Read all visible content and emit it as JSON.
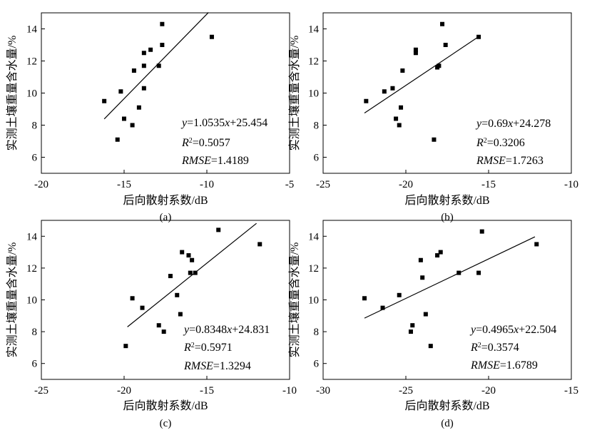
{
  "chart_data": [
    {
      "type": "scatter",
      "panel_label": "(a)",
      "xlabel": "后向散射系数/dB",
      "ylabel": "实测土壤重量含水量/%",
      "xlim": [
        -20,
        -5
      ],
      "ylim": [
        5,
        15
      ],
      "x_ticks": [
        -20,
        -15,
        -10,
        -5
      ],
      "y_ticks": [
        6,
        8,
        10,
        12,
        14
      ],
      "points": [
        {
          "x": -16.2,
          "y": 9.5
        },
        {
          "x": -15.4,
          "y": 7.1
        },
        {
          "x": -15.2,
          "y": 10.1
        },
        {
          "x": -15.0,
          "y": 8.4
        },
        {
          "x": -14.5,
          "y": 8.0
        },
        {
          "x": -14.4,
          "y": 11.4
        },
        {
          "x": -14.1,
          "y": 9.1
        },
        {
          "x": -13.8,
          "y": 10.3
        },
        {
          "x": -13.8,
          "y": 11.7
        },
        {
          "x": -13.8,
          "y": 12.5
        },
        {
          "x": -13.4,
          "y": 12.7
        },
        {
          "x": -12.9,
          "y": 11.7
        },
        {
          "x": -12.7,
          "y": 13.0
        },
        {
          "x": -12.7,
          "y": 14.3
        },
        {
          "x": -9.7,
          "y": 13.5
        }
      ],
      "fit": {
        "slope": 1.0535,
        "intercept": 25.454,
        "x_range": [
          -16.2,
          -9.9
        ]
      },
      "equation": {
        "y_var": "y",
        "eq_main": "=1.0535",
        "x_var": "x",
        "eq_tail": "+25.454",
        "r2_label": "R",
        "r2_sup": "2",
        "r2_value": "=0.5057",
        "rmse_label": "RMSE",
        "rmse_value": "=1.4189"
      }
    },
    {
      "type": "scatter",
      "panel_label": "(b)",
      "xlabel": "后向散射系数/dB",
      "ylabel": "实测土壤重量含水量/%",
      "xlim": [
        -25,
        -10
      ],
      "ylim": [
        5,
        15
      ],
      "x_ticks": [
        -25,
        -20,
        -15,
        -10
      ],
      "y_ticks": [
        6,
        8,
        10,
        12,
        14
      ],
      "points": [
        {
          "x": -22.4,
          "y": 9.5
        },
        {
          "x": -21.3,
          "y": 10.1
        },
        {
          "x": -20.8,
          "y": 10.3
        },
        {
          "x": -20.6,
          "y": 8.4
        },
        {
          "x": -20.4,
          "y": 8.0
        },
        {
          "x": -20.3,
          "y": 9.1
        },
        {
          "x": -20.2,
          "y": 11.4
        },
        {
          "x": -19.4,
          "y": 12.5
        },
        {
          "x": -19.4,
          "y": 12.7
        },
        {
          "x": -18.3,
          "y": 7.1
        },
        {
          "x": -18.1,
          "y": 11.6
        },
        {
          "x": -18.0,
          "y": 11.7
        },
        {
          "x": -17.8,
          "y": 14.3
        },
        {
          "x": -17.6,
          "y": 13.0
        },
        {
          "x": -15.6,
          "y": 13.5
        }
      ],
      "fit": {
        "slope": 0.69,
        "intercept": 24.278,
        "x_range": [
          -22.5,
          -15.6
        ]
      },
      "equation": {
        "y_var": "y",
        "eq_main": "=0.69",
        "x_var": "x",
        "eq_tail": "+24.278",
        "r2_label": "R",
        "r2_sup": "2",
        "r2_value": "=0.3206",
        "rmse_label": "RMSE",
        "rmse_value": "=1.7263"
      }
    },
    {
      "type": "scatter",
      "panel_label": "(c)",
      "xlabel": "后向散射系数/dB",
      "ylabel": "实测土壤重量含水量/%",
      "xlim": [
        -25,
        -10
      ],
      "ylim": [
        5,
        15
      ],
      "x_ticks": [
        -25,
        -20,
        -15,
        -10
      ],
      "y_ticks": [
        6,
        8,
        10,
        12,
        14
      ],
      "points": [
        {
          "x": -19.9,
          "y": 7.1
        },
        {
          "x": -19.5,
          "y": 10.1
        },
        {
          "x": -18.9,
          "y": 9.5
        },
        {
          "x": -17.9,
          "y": 8.4
        },
        {
          "x": -17.6,
          "y": 8.0
        },
        {
          "x": -17.2,
          "y": 11.5
        },
        {
          "x": -16.8,
          "y": 10.3
        },
        {
          "x": -16.6,
          "y": 9.1
        },
        {
          "x": -16.5,
          "y": 13.0
        },
        {
          "x": -16.1,
          "y": 12.8
        },
        {
          "x": -16.0,
          "y": 11.7
        },
        {
          "x": -15.9,
          "y": 12.5
        },
        {
          "x": -15.7,
          "y": 11.7
        },
        {
          "x": -14.3,
          "y": 14.4
        },
        {
          "x": -11.8,
          "y": 13.5
        }
      ],
      "fit": {
        "slope": 0.8348,
        "intercept": 24.831,
        "x_range": [
          -19.8,
          -12.0
        ]
      },
      "equation": {
        "y_var": "y",
        "eq_main": "=0.8348",
        "x_var": "x",
        "eq_tail": "+24.831",
        "r2_label": "R",
        "r2_sup": "2",
        "r2_value": "=0.5971",
        "rmse_label": "RMSE",
        "rmse_value": "=1.3294"
      }
    },
    {
      "type": "scatter",
      "panel_label": "(d)",
      "xlabel": "后向散射系数/dB",
      "ylabel": "实测土壤重量含水量/%",
      "xlim": [
        -30,
        -15
      ],
      "ylim": [
        5,
        15
      ],
      "x_ticks": [
        -30,
        -25,
        -20,
        -15
      ],
      "y_ticks": [
        6,
        8,
        10,
        12,
        14
      ],
      "points": [
        {
          "x": -27.5,
          "y": 10.1
        },
        {
          "x": -26.4,
          "y": 9.5
        },
        {
          "x": -25.4,
          "y": 10.3
        },
        {
          "x": -24.7,
          "y": 8.0
        },
        {
          "x": -24.6,
          "y": 8.4
        },
        {
          "x": -24.1,
          "y": 12.5
        },
        {
          "x": -24.0,
          "y": 11.4
        },
        {
          "x": -23.8,
          "y": 9.1
        },
        {
          "x": -23.5,
          "y": 7.1
        },
        {
          "x": -23.1,
          "y": 12.8
        },
        {
          "x": -22.9,
          "y": 13.0
        },
        {
          "x": -21.8,
          "y": 11.7
        },
        {
          "x": -20.6,
          "y": 11.7
        },
        {
          "x": -20.4,
          "y": 14.3
        },
        {
          "x": -17.1,
          "y": 13.5
        }
      ],
      "fit": {
        "slope": 0.4965,
        "intercept": 22.504,
        "x_range": [
          -27.5,
          -17.2
        ]
      },
      "equation": {
        "y_var": "y",
        "eq_main": "=0.4965",
        "x_var": "x",
        "eq_tail": "+22.504",
        "r2_label": "R",
        "r2_sup": "2",
        "r2_value": "=0.3574",
        "rmse_label": "RMSE",
        "rmse_value": "=1.6789"
      }
    }
  ]
}
